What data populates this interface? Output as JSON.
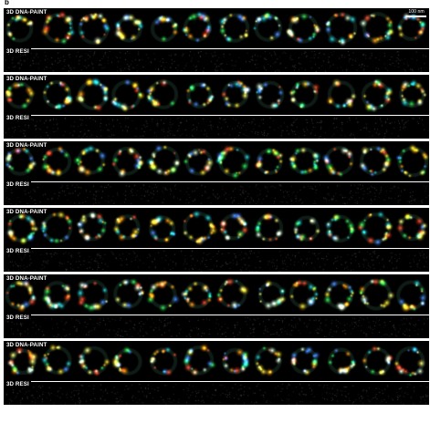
{
  "figure": {
    "panel_letter": "b",
    "scale_bar_label": "100 nm",
    "rows": [
      {
        "top_label": "3D DNA-PAINT",
        "bottom_label": "3D RESI"
      },
      {
        "top_label": "3D DNA-PAINT",
        "bottom_label": "3D RESI"
      },
      {
        "top_label": "3D DNA-PAINT",
        "bottom_label": "3D RESI"
      },
      {
        "top_label": "3D DNA-PAINT",
        "bottom_label": "3D RESI"
      },
      {
        "top_label": "3D DNA-PAINT",
        "bottom_label": "3D RESI"
      },
      {
        "top_label": "3D DNA-PAINT",
        "bottom_label": "3D RESI"
      }
    ],
    "rings_per_row": 12,
    "colors": [
      "#ff3b1f",
      "#ff8a00",
      "#ffd21a",
      "#fff36a",
      "#28e04a",
      "#19c8d8",
      "#3f7bff",
      "#e8ffe0"
    ]
  }
}
